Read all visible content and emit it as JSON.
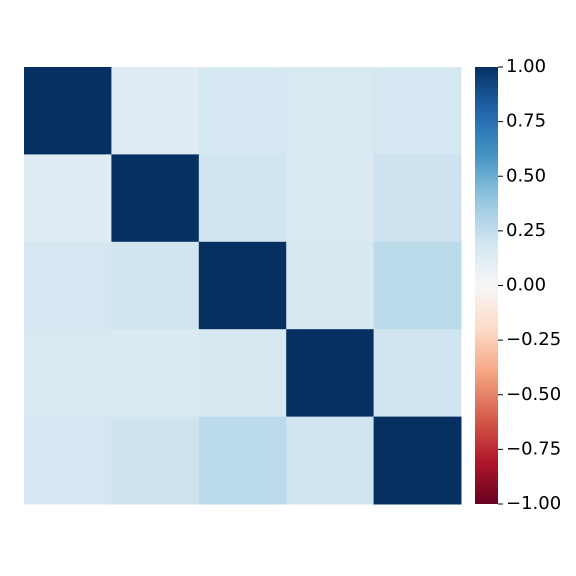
{
  "chart_data": {
    "type": "heatmap",
    "values": [
      [
        1,
        0.12,
        0.18,
        0.16,
        0.18
      ],
      [
        0.12,
        1,
        0.2,
        0.15,
        0.21
      ],
      [
        0.18,
        0.2,
        1,
        0.17,
        0.27
      ],
      [
        0.16,
        0.15,
        0.17,
        1,
        0.2
      ],
      [
        0.18,
        0.21,
        0.27,
        0.2,
        1
      ]
    ],
    "colormap": [
      "#67001f",
      "#b2182b",
      "#d6604d",
      "#f4a582",
      "#fddbc7",
      "#f7f7f7",
      "#d1e5f0",
      "#92c5de",
      "#4393c3",
      "#2166ac",
      "#053061"
    ],
    "zlim": [
      -1,
      1
    ],
    "zticks": [
      {
        "value": 1,
        "label": "1.00"
      },
      {
        "value": 0.75,
        "label": "0.75"
      },
      {
        "value": 0.5,
        "label": "0.50"
      },
      {
        "value": 0.25,
        "label": "0.25"
      },
      {
        "value": 0,
        "label": "0.00"
      },
      {
        "value": -0.25,
        "label": "−0.25"
      },
      {
        "value": -0.5,
        "label": "−0.50"
      },
      {
        "value": -0.75,
        "label": "−0.75"
      },
      {
        "value": -1,
        "label": "−1.00"
      }
    ]
  }
}
